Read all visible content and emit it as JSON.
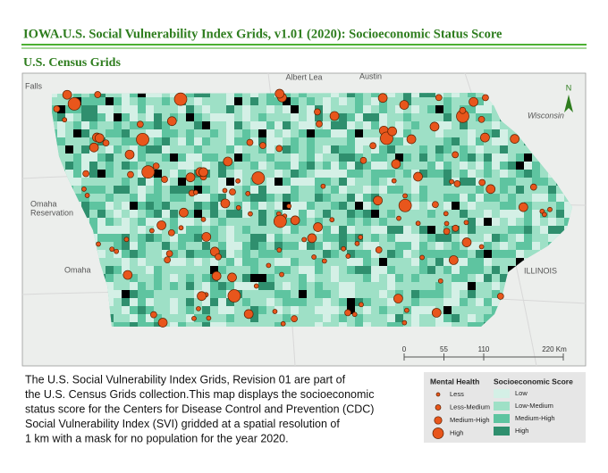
{
  "header": {
    "title": "IOWA.U.S. Social Vulnerability Index Grids, v1.01 (2020): Socioeconomic Status Score",
    "subtitle": "U.S. Census Grids"
  },
  "map": {
    "places": [
      "Albert Lea",
      "Austin",
      "Falls",
      "Omaha",
      "Reservation",
      "Omaha",
      "Wisconsin",
      "ILLINOIS",
      "N"
    ],
    "scale_bar": {
      "ticks": [
        0,
        55,
        110,
        {
          "value": 220,
          "label": "220 Km"
        }
      ]
    }
  },
  "description": [
    "The U.S. Social Vulnerability Index Grids, Revision 01 are part of",
    "the U.S. Census Grids collection.This map displays the socioeconomic",
    "status score for the Centers for Disease Control and Prevention (CDC)",
    "Social Vulnerability Index (SVI) gridded at a spatial resolution of",
    "1 km with a mask for no population for the year 2020."
  ],
  "legend": {
    "mental_health": {
      "title": "Mental Health",
      "items": [
        "Less",
        "Less-Medium",
        "Medium-High",
        "High"
      ]
    },
    "socioeconomic": {
      "title": "Socioeconomic Score",
      "items": [
        "Low",
        "Low-Medium",
        "Medium-High",
        "High"
      ]
    }
  }
}
